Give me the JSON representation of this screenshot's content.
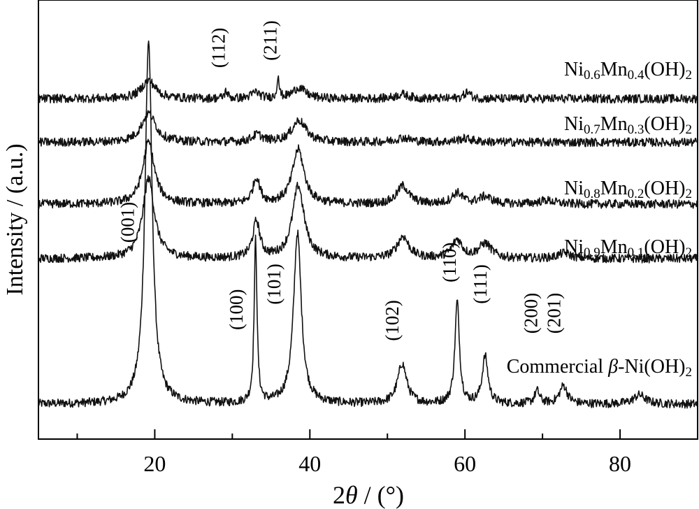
{
  "chart_data": {
    "type": "line",
    "xlabel": "2θ / (°)",
    "ylabel": "Intensity / (a.u.)",
    "xlim": [
      5,
      90
    ],
    "xticks": [
      20,
      40,
      60,
      80
    ],
    "x_minor_ticks": [
      10,
      30,
      50,
      70
    ],
    "grid": false,
    "series": [
      {
        "name": "Commercial β-Ni(OH)2",
        "label_parts": [
          [
            "Commercial ",
            "n"
          ],
          [
            "β",
            "i"
          ],
          [
            "-Ni(OH)",
            "n"
          ],
          [
            "2",
            "sub"
          ]
        ],
        "baseline": 0.0,
        "noise": 0.012,
        "peaks": [
          {
            "x": 19.2,
            "h": 1.0,
            "w": 0.55
          },
          {
            "x": 33.0,
            "h": 0.45,
            "w": 0.22
          },
          {
            "x": 38.4,
            "h": 0.47,
            "w": 0.6
          },
          {
            "x": 51.9,
            "h": 0.11,
            "w": 0.7
          },
          {
            "x": 59.0,
            "h": 0.28,
            "w": 0.35
          },
          {
            "x": 62.6,
            "h": 0.13,
            "w": 0.45
          },
          {
            "x": 69.3,
            "h": 0.035,
            "w": 0.4
          },
          {
            "x": 72.7,
            "h": 0.05,
            "w": 0.6
          },
          {
            "x": 82.5,
            "h": 0.025,
            "w": 0.9
          }
        ]
      },
      {
        "name": "Ni0.9Mn0.1(OH)2",
        "label_parts": [
          [
            "Ni",
            "n"
          ],
          [
            "0.9",
            "sub"
          ],
          [
            "Mn",
            "n"
          ],
          [
            "0.1",
            "sub"
          ],
          [
            "(OH)",
            "n"
          ],
          [
            "2",
            "sub"
          ]
        ],
        "baseline": 0.4,
        "noise": 0.012,
        "peaks": [
          {
            "x": 19.2,
            "h": 0.22,
            "w": 0.9
          },
          {
            "x": 33.1,
            "h": 0.1,
            "w": 0.55
          },
          {
            "x": 38.5,
            "h": 0.2,
            "w": 0.9
          },
          {
            "x": 52.0,
            "h": 0.06,
            "w": 0.9
          },
          {
            "x": 59.0,
            "h": 0.05,
            "w": 0.8
          },
          {
            "x": 62.6,
            "h": 0.04,
            "w": 1.0
          },
          {
            "x": 72.8,
            "h": 0.015,
            "w": 1.0
          }
        ]
      },
      {
        "name": "Ni0.8Mn0.2(OH)2",
        "label_parts": [
          [
            "Ni",
            "n"
          ],
          [
            "0.8",
            "sub"
          ],
          [
            "Mn",
            "n"
          ],
          [
            "0.2",
            "sub"
          ],
          [
            "(OH)",
            "n"
          ],
          [
            "2",
            "sub"
          ]
        ],
        "baseline": 0.55,
        "noise": 0.012,
        "peaks": [
          {
            "x": 19.2,
            "h": 0.17,
            "w": 0.9
          },
          {
            "x": 33.1,
            "h": 0.07,
            "w": 0.55
          },
          {
            "x": 38.5,
            "h": 0.15,
            "w": 0.9
          },
          {
            "x": 52.0,
            "h": 0.05,
            "w": 0.9
          },
          {
            "x": 59.0,
            "h": 0.03,
            "w": 0.8
          },
          {
            "x": 62.6,
            "h": 0.02,
            "w": 1.0
          },
          {
            "x": 70.5,
            "h": 0.01,
            "w": 1.2
          }
        ]
      },
      {
        "name": "Ni0.7Mn0.3(OH)2",
        "label_parts": [
          [
            "Ni",
            "n"
          ],
          [
            "0.7",
            "sub"
          ],
          [
            "Mn",
            "n"
          ],
          [
            "0.3",
            "sub"
          ],
          [
            "(OH)",
            "n"
          ],
          [
            "2",
            "sub"
          ]
        ],
        "baseline": 0.72,
        "noise": 0.012,
        "peaks": [
          {
            "x": 19.2,
            "h": 0.08,
            "w": 1.1
          },
          {
            "x": 33.2,
            "h": 0.02,
            "w": 0.8
          },
          {
            "x": 38.6,
            "h": 0.06,
            "w": 1.1
          },
          {
            "x": 52.0,
            "h": 0.012,
            "w": 1.2
          },
          {
            "x": 60.0,
            "h": 0.01,
            "w": 1.2
          }
        ]
      },
      {
        "name": "Ni0.6Mn0.4(OH)2",
        "label_parts": [
          [
            "Ni",
            "n"
          ],
          [
            "0.6",
            "sub"
          ],
          [
            "Mn",
            "n"
          ],
          [
            "0.4",
            "sub"
          ],
          [
            "(OH)",
            "n"
          ],
          [
            "2",
            "sub"
          ]
        ],
        "baseline": 0.84,
        "noise": 0.012,
        "peaks": [
          {
            "x": 19.2,
            "h": 0.05,
            "w": 1.1
          },
          {
            "x": 29.2,
            "h": 0.02,
            "w": 0.25
          },
          {
            "x": 33.0,
            "h": 0.018,
            "w": 0.6
          },
          {
            "x": 35.9,
            "h": 0.065,
            "w": 0.15
          },
          {
            "x": 38.6,
            "h": 0.03,
            "w": 1.0
          },
          {
            "x": 51.9,
            "h": 0.012,
            "w": 1.0
          },
          {
            "x": 60.3,
            "h": 0.018,
            "w": 0.5
          }
        ]
      }
    ],
    "annotations": [
      {
        "text": "(001)",
        "x": 17.3,
        "y": 0.5
      },
      {
        "text": "(100)",
        "x": 31.3,
        "y": 0.26
      },
      {
        "text": "(101)",
        "x": 36.2,
        "y": 0.33
      },
      {
        "text": "(102)",
        "x": 51.4,
        "y": 0.23
      },
      {
        "text": "(110)",
        "x": 58.8,
        "y": 0.39
      },
      {
        "text": "(111)",
        "x": 62.8,
        "y": 0.33
      },
      {
        "text": "(200)",
        "x": 69.3,
        "y": 0.25
      },
      {
        "text": "(201)",
        "x": 72.3,
        "y": 0.25
      },
      {
        "text": "(112)",
        "x": 29.0,
        "y": 0.98
      },
      {
        "text": "(211)",
        "x": 35.7,
        "y": 1.0
      }
    ]
  }
}
